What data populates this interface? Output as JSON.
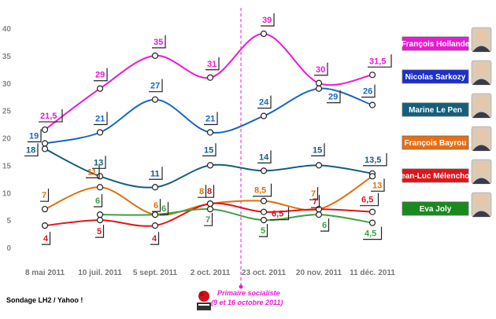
{
  "chart_data": {
    "type": "line",
    "title": "",
    "xlabel": "",
    "ylabel": "",
    "ylim": [
      0,
      40
    ],
    "yticks": [
      0,
      5,
      10,
      15,
      20,
      25,
      30,
      35,
      40
    ],
    "grid": false,
    "legend_position": "right",
    "categories": [
      "8 mai 2011",
      "10 juil. 2011",
      "5 sept. 2011",
      "2 oct. 2011",
      "23 oct. 2011",
      "20 nov. 2011",
      "11 déc. 2011"
    ],
    "series": [
      {
        "name": "François Hollande",
        "color": "#ec18d6",
        "values": [
          21.5,
          29,
          35,
          31,
          39,
          30,
          31.5
        ],
        "labels": [
          "21,5",
          "29",
          "35",
          "31",
          "39",
          "30",
          "31,5"
        ]
      },
      {
        "name": "Nicolas Sarkozy",
        "color": "#1a66c0",
        "values": [
          19,
          21,
          27,
          21,
          24,
          29,
          26
        ],
        "labels": [
          "19",
          "21",
          "27",
          "21",
          "24",
          "29",
          "26"
        ]
      },
      {
        "name": "Marine Le Pen",
        "color": "#145f7c",
        "values": [
          18,
          13,
          11,
          15,
          14,
          15,
          13.5
        ],
        "labels": [
          "18",
          "13",
          "11",
          "15",
          "14",
          "15",
          "13,5"
        ]
      },
      {
        "name": "François Bayrou",
        "color": "#e0700a",
        "values": [
          7,
          11,
          6,
          8,
          8.5,
          7,
          13
        ],
        "labels": [
          "7",
          "11",
          "6",
          "8",
          "8,5",
          "7",
          "13"
        ]
      },
      {
        "name": "Jean-Luc Mélenchon",
        "color": "#e0141b",
        "values": [
          4,
          5,
          4,
          8,
          6.5,
          7,
          6.5
        ],
        "labels": [
          "4",
          "5",
          "4",
          "8",
          "6,5",
          "7",
          "6,5"
        ]
      },
      {
        "name": "Eva Joly",
        "color": "#3fa043",
        "values": [
          null,
          6,
          6,
          7,
          5,
          6,
          4.5
        ],
        "labels": [
          "",
          "6",
          "6",
          "7",
          "5",
          "6",
          "4,5"
        ]
      }
    ],
    "legend": [
      {
        "name": "François Hollande",
        "bg": "#ec18d6"
      },
      {
        "name": "Nicolas Sarkozy",
        "bg": "#1a2fd0"
      },
      {
        "name": "Marine Le Pen",
        "bg": "#145f7c"
      },
      {
        "name": "François Bayrou",
        "bg": "#ec6d10"
      },
      {
        "name": "Jean-Luc Mélenchon",
        "bg": "#e0141b"
      },
      {
        "name": "Eva Joly",
        "bg": "#1b8a1e"
      }
    ],
    "annotation": {
      "line1": "Primaire socialiste",
      "line2": "(9 et 16 octobre 2011)",
      "color": "#ec18d6"
    },
    "source": "Sondage LH2 / Yahoo !"
  }
}
